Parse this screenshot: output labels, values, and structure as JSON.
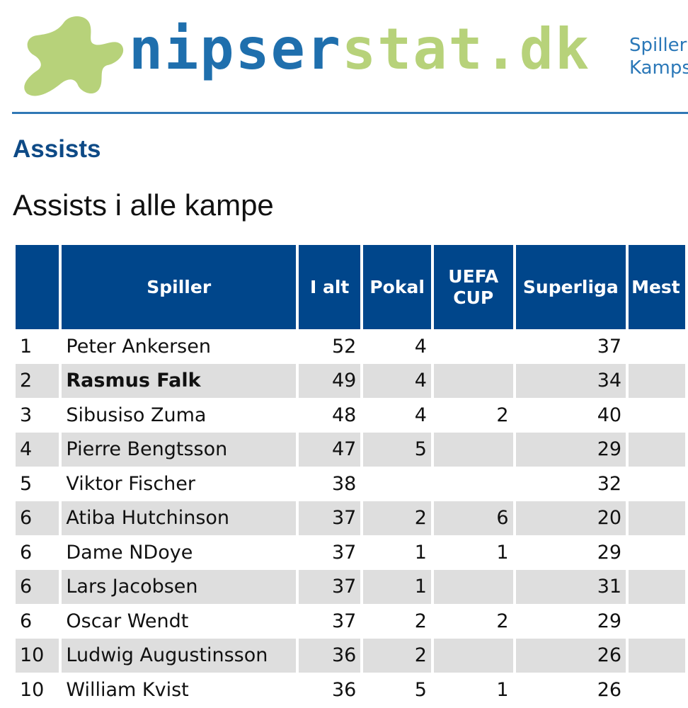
{
  "site": {
    "logo_part1": "nipser",
    "logo_part2": "stat.dk",
    "nav": [
      "Spiller",
      "Kamps"
    ],
    "colors": {
      "primary": "#1f6fad",
      "accent": "#b7d27a",
      "header_bg": "#00468b"
    }
  },
  "section_title": "Assists",
  "page_title": "Assists i alle kampe",
  "table": {
    "headers": {
      "rank": "",
      "player": "Spiller",
      "total": "I alt",
      "cup": "Pokal",
      "uefa": "UEFA CUP",
      "superliga": "Superliga",
      "mest": "Mest"
    },
    "rows": [
      {
        "rank": "1",
        "player": "Peter Ankersen",
        "total": "52",
        "cup": "4",
        "uefa": "",
        "superliga": "37",
        "mest": "",
        "bold": false
      },
      {
        "rank": "2",
        "player": "Rasmus Falk",
        "total": "49",
        "cup": "4",
        "uefa": "",
        "superliga": "34",
        "mest": "",
        "bold": true
      },
      {
        "rank": "3",
        "player": "Sibusiso Zuma",
        "total": "48",
        "cup": "4",
        "uefa": "2",
        "superliga": "40",
        "mest": "",
        "bold": false
      },
      {
        "rank": "4",
        "player": "Pierre Bengtsson",
        "total": "47",
        "cup": "5",
        "uefa": "",
        "superliga": "29",
        "mest": "",
        "bold": false
      },
      {
        "rank": "5",
        "player": "Viktor Fischer",
        "total": "38",
        "cup": "",
        "uefa": "",
        "superliga": "32",
        "mest": "",
        "bold": false
      },
      {
        "rank": "6",
        "player": "Atiba Hutchinson",
        "total": "37",
        "cup": "2",
        "uefa": "6",
        "superliga": "20",
        "mest": "",
        "bold": false
      },
      {
        "rank": "6",
        "player": "Dame NDoye",
        "total": "37",
        "cup": "1",
        "uefa": "1",
        "superliga": "29",
        "mest": "",
        "bold": false
      },
      {
        "rank": "6",
        "player": "Lars Jacobsen",
        "total": "37",
        "cup": "1",
        "uefa": "",
        "superliga": "31",
        "mest": "",
        "bold": false
      },
      {
        "rank": "6",
        "player": "Oscar Wendt",
        "total": "37",
        "cup": "2",
        "uefa": "2",
        "superliga": "29",
        "mest": "",
        "bold": false
      },
      {
        "rank": "10",
        "player": "Ludwig Augustinsson",
        "total": "36",
        "cup": "2",
        "uefa": "",
        "superliga": "26",
        "mest": "",
        "bold": false
      },
      {
        "rank": "10",
        "player": "William Kvist",
        "total": "36",
        "cup": "5",
        "uefa": "1",
        "superliga": "26",
        "mest": "",
        "bold": false
      }
    ]
  }
}
